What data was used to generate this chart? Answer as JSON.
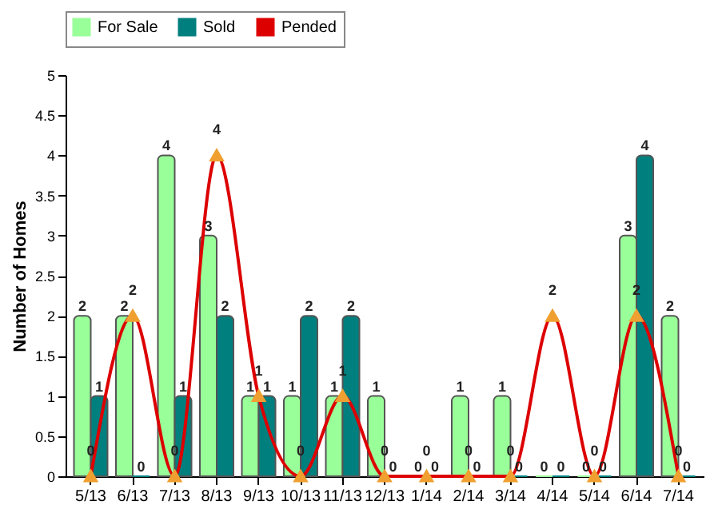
{
  "chart_data": {
    "type": "bar",
    "ylabel": "Number of Homes",
    "categories": [
      "5/13",
      "6/13",
      "7/13",
      "8/13",
      "9/13",
      "10/13",
      "11/13",
      "12/13",
      "1/14",
      "2/14",
      "3/14",
      "4/14",
      "5/14",
      "6/14",
      "7/14"
    ],
    "series": [
      {
        "name": "For Sale",
        "color": "#99ff99",
        "values": [
          2,
          2,
          4,
          3,
          1,
          1,
          1,
          1,
          0,
          1,
          1,
          0,
          0,
          3,
          2
        ]
      },
      {
        "name": "Sold",
        "color": "#007f7f",
        "values": [
          1,
          0,
          1,
          2,
          1,
          2,
          2,
          0,
          0,
          0,
          0,
          0,
          0,
          4,
          0
        ]
      },
      {
        "name": "Pended",
        "type": "line",
        "color": "#dd0000",
        "values": [
          0,
          2,
          0,
          4,
          1,
          0,
          1,
          0,
          0,
          0,
          0,
          2,
          0,
          2,
          0
        ]
      }
    ],
    "ylim": [
      0,
      5
    ],
    "yticks": [
      0,
      0.5,
      1,
      1.5,
      2,
      2.5,
      3,
      3.5,
      4,
      4.5,
      5
    ],
    "grid": false,
    "legend": "top",
    "marker": "triangle",
    "data_labels": true
  }
}
